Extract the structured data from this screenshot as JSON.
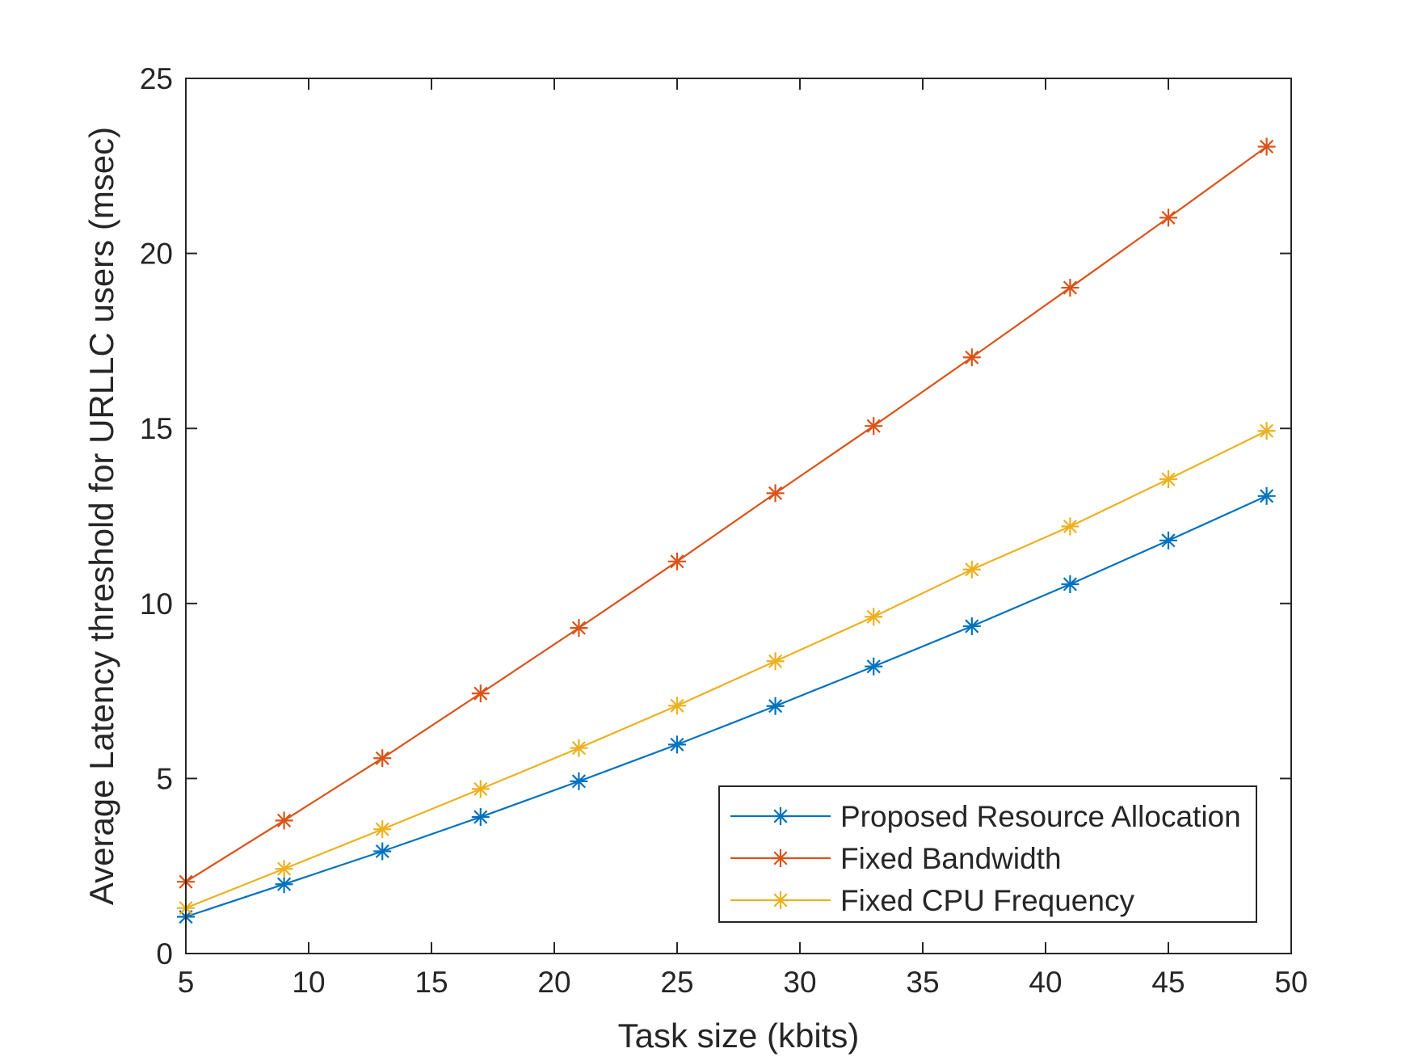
{
  "chart_data": {
    "type": "line",
    "title": "",
    "xlabel": "Task size (kbits)",
    "ylabel": "Average Latency threshold for URLLC users (msec)",
    "xlim": [
      5,
      50
    ],
    "ylim": [
      0,
      25
    ],
    "xticks": [
      5,
      10,
      15,
      20,
      25,
      30,
      35,
      40,
      45,
      50
    ],
    "yticks": [
      0,
      5,
      10,
      15,
      20,
      25
    ],
    "x": [
      5,
      9,
      13,
      17,
      21,
      25,
      29,
      33,
      37,
      41,
      45,
      49
    ],
    "marker": "asterisk",
    "grid": false,
    "legend_position": "bottom-right",
    "series": [
      {
        "name": "Proposed Resource Allocation",
        "color": "#0072BD",
        "values": [
          1.05,
          1.98,
          2.92,
          3.9,
          4.92,
          5.97,
          7.07,
          8.2,
          9.35,
          10.55,
          11.8,
          13.07
        ]
      },
      {
        "name": "Fixed Bandwidth",
        "color": "#D95319",
        "values": [
          2.05,
          3.8,
          5.58,
          7.43,
          9.3,
          11.2,
          13.15,
          15.07,
          17.03,
          19.02,
          21.02,
          23.05
        ]
      },
      {
        "name": "Fixed CPU Frequency",
        "color": "#EDB120",
        "values": [
          1.3,
          2.42,
          3.55,
          4.7,
          5.87,
          7.08,
          8.35,
          9.62,
          10.97,
          12.2,
          13.55,
          14.93
        ]
      }
    ]
  }
}
